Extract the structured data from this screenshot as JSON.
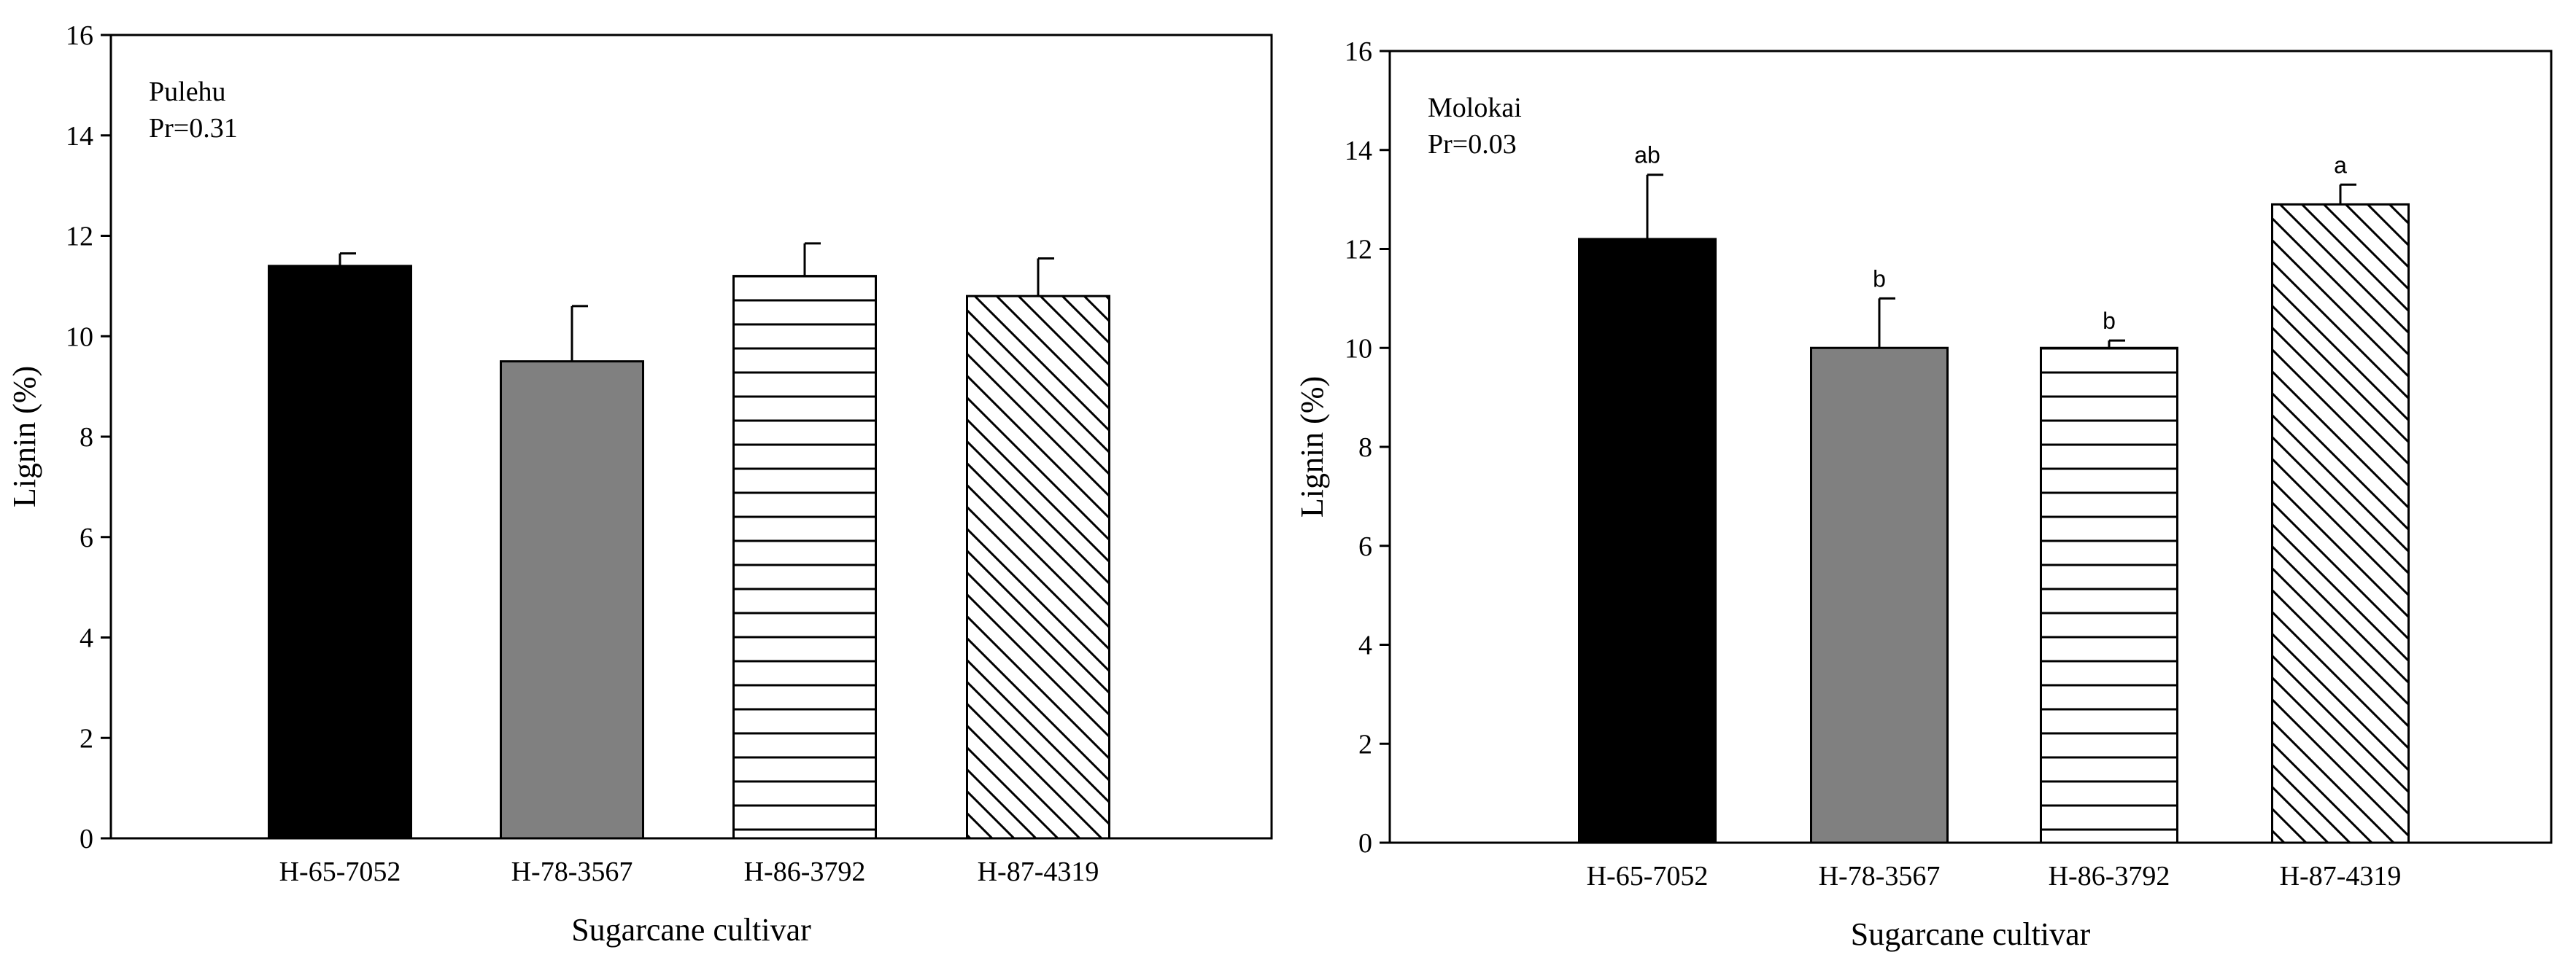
{
  "chart_data": [
    {
      "type": "bar",
      "panel_label": "Pulehu",
      "pr_text": "Pr=0.31",
      "xlabel": "Sugarcane cultivar",
      "ylabel": "Lignin (%)",
      "ylim": [
        0,
        16
      ],
      "yticks": [
        "0",
        "2",
        "4",
        "6",
        "8",
        "10",
        "12",
        "14",
        "16"
      ],
      "categories": [
        "H-65-7052",
        "H-78-3567",
        "H-86-3792",
        "H-87-4319"
      ],
      "values": [
        11.4,
        9.5,
        11.2,
        10.8
      ],
      "errors": [
        0.25,
        1.1,
        0.65,
        0.75
      ],
      "letters": [
        "",
        "",
        "",
        ""
      ],
      "fills": [
        "solid-black",
        "solid-gray",
        "horizontal-lines",
        "diagonal-lines"
      ],
      "colors": {
        "black": "#000000",
        "gray": "#808080"
      },
      "grid": false,
      "legend": "none"
    },
    {
      "type": "bar",
      "panel_label": "Molokai",
      "pr_text": "Pr=0.03",
      "xlabel": "Sugarcane cultivar",
      "ylabel": "Lignin (%)",
      "ylim": [
        0,
        16
      ],
      "yticks": [
        "0",
        "2",
        "4",
        "6",
        "8",
        "10",
        "12",
        "14",
        "16"
      ],
      "categories": [
        "H-65-7052",
        "H-78-3567",
        "H-86-3792",
        "H-87-4319"
      ],
      "values": [
        12.2,
        10.0,
        10.0,
        12.9
      ],
      "errors": [
        1.3,
        1.0,
        0.15,
        0.4
      ],
      "letters": [
        "ab",
        "b",
        "b",
        "a"
      ],
      "fills": [
        "solid-black",
        "solid-gray",
        "horizontal-lines",
        "diagonal-lines"
      ],
      "colors": {
        "black": "#000000",
        "gray": "#808080"
      },
      "grid": false,
      "legend": "none"
    }
  ]
}
